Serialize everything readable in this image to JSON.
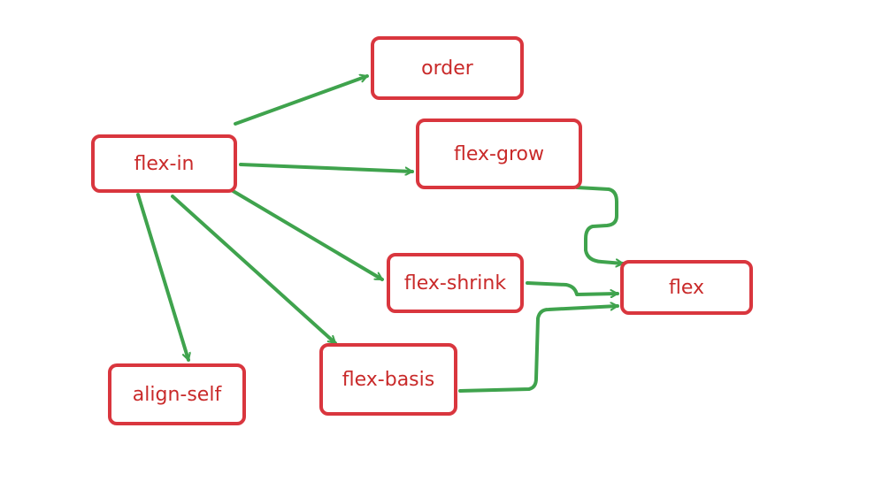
{
  "diagram": {
    "nodes": {
      "order": "order",
      "flex_in": "flex-in",
      "flex_grow": "flex-grow",
      "flex_shrink": "flex-shrink",
      "flex": "flex",
      "align_self": "align-self",
      "flex_basis": "flex-basis"
    },
    "edges": [
      {
        "from": "flex-in",
        "to": "order"
      },
      {
        "from": "flex-in",
        "to": "flex-grow"
      },
      {
        "from": "flex-in",
        "to": "flex-shrink"
      },
      {
        "from": "flex-in",
        "to": "flex-basis"
      },
      {
        "from": "flex-in",
        "to": "align-self"
      },
      {
        "from": "flex-grow",
        "to": "flex"
      },
      {
        "from": "flex-shrink",
        "to": "flex"
      },
      {
        "from": "flex-basis",
        "to": "flex"
      }
    ],
    "colors": {
      "node_border": "#d9363e",
      "node_text": "#c92a2a",
      "edge": "#3fa34d"
    }
  }
}
